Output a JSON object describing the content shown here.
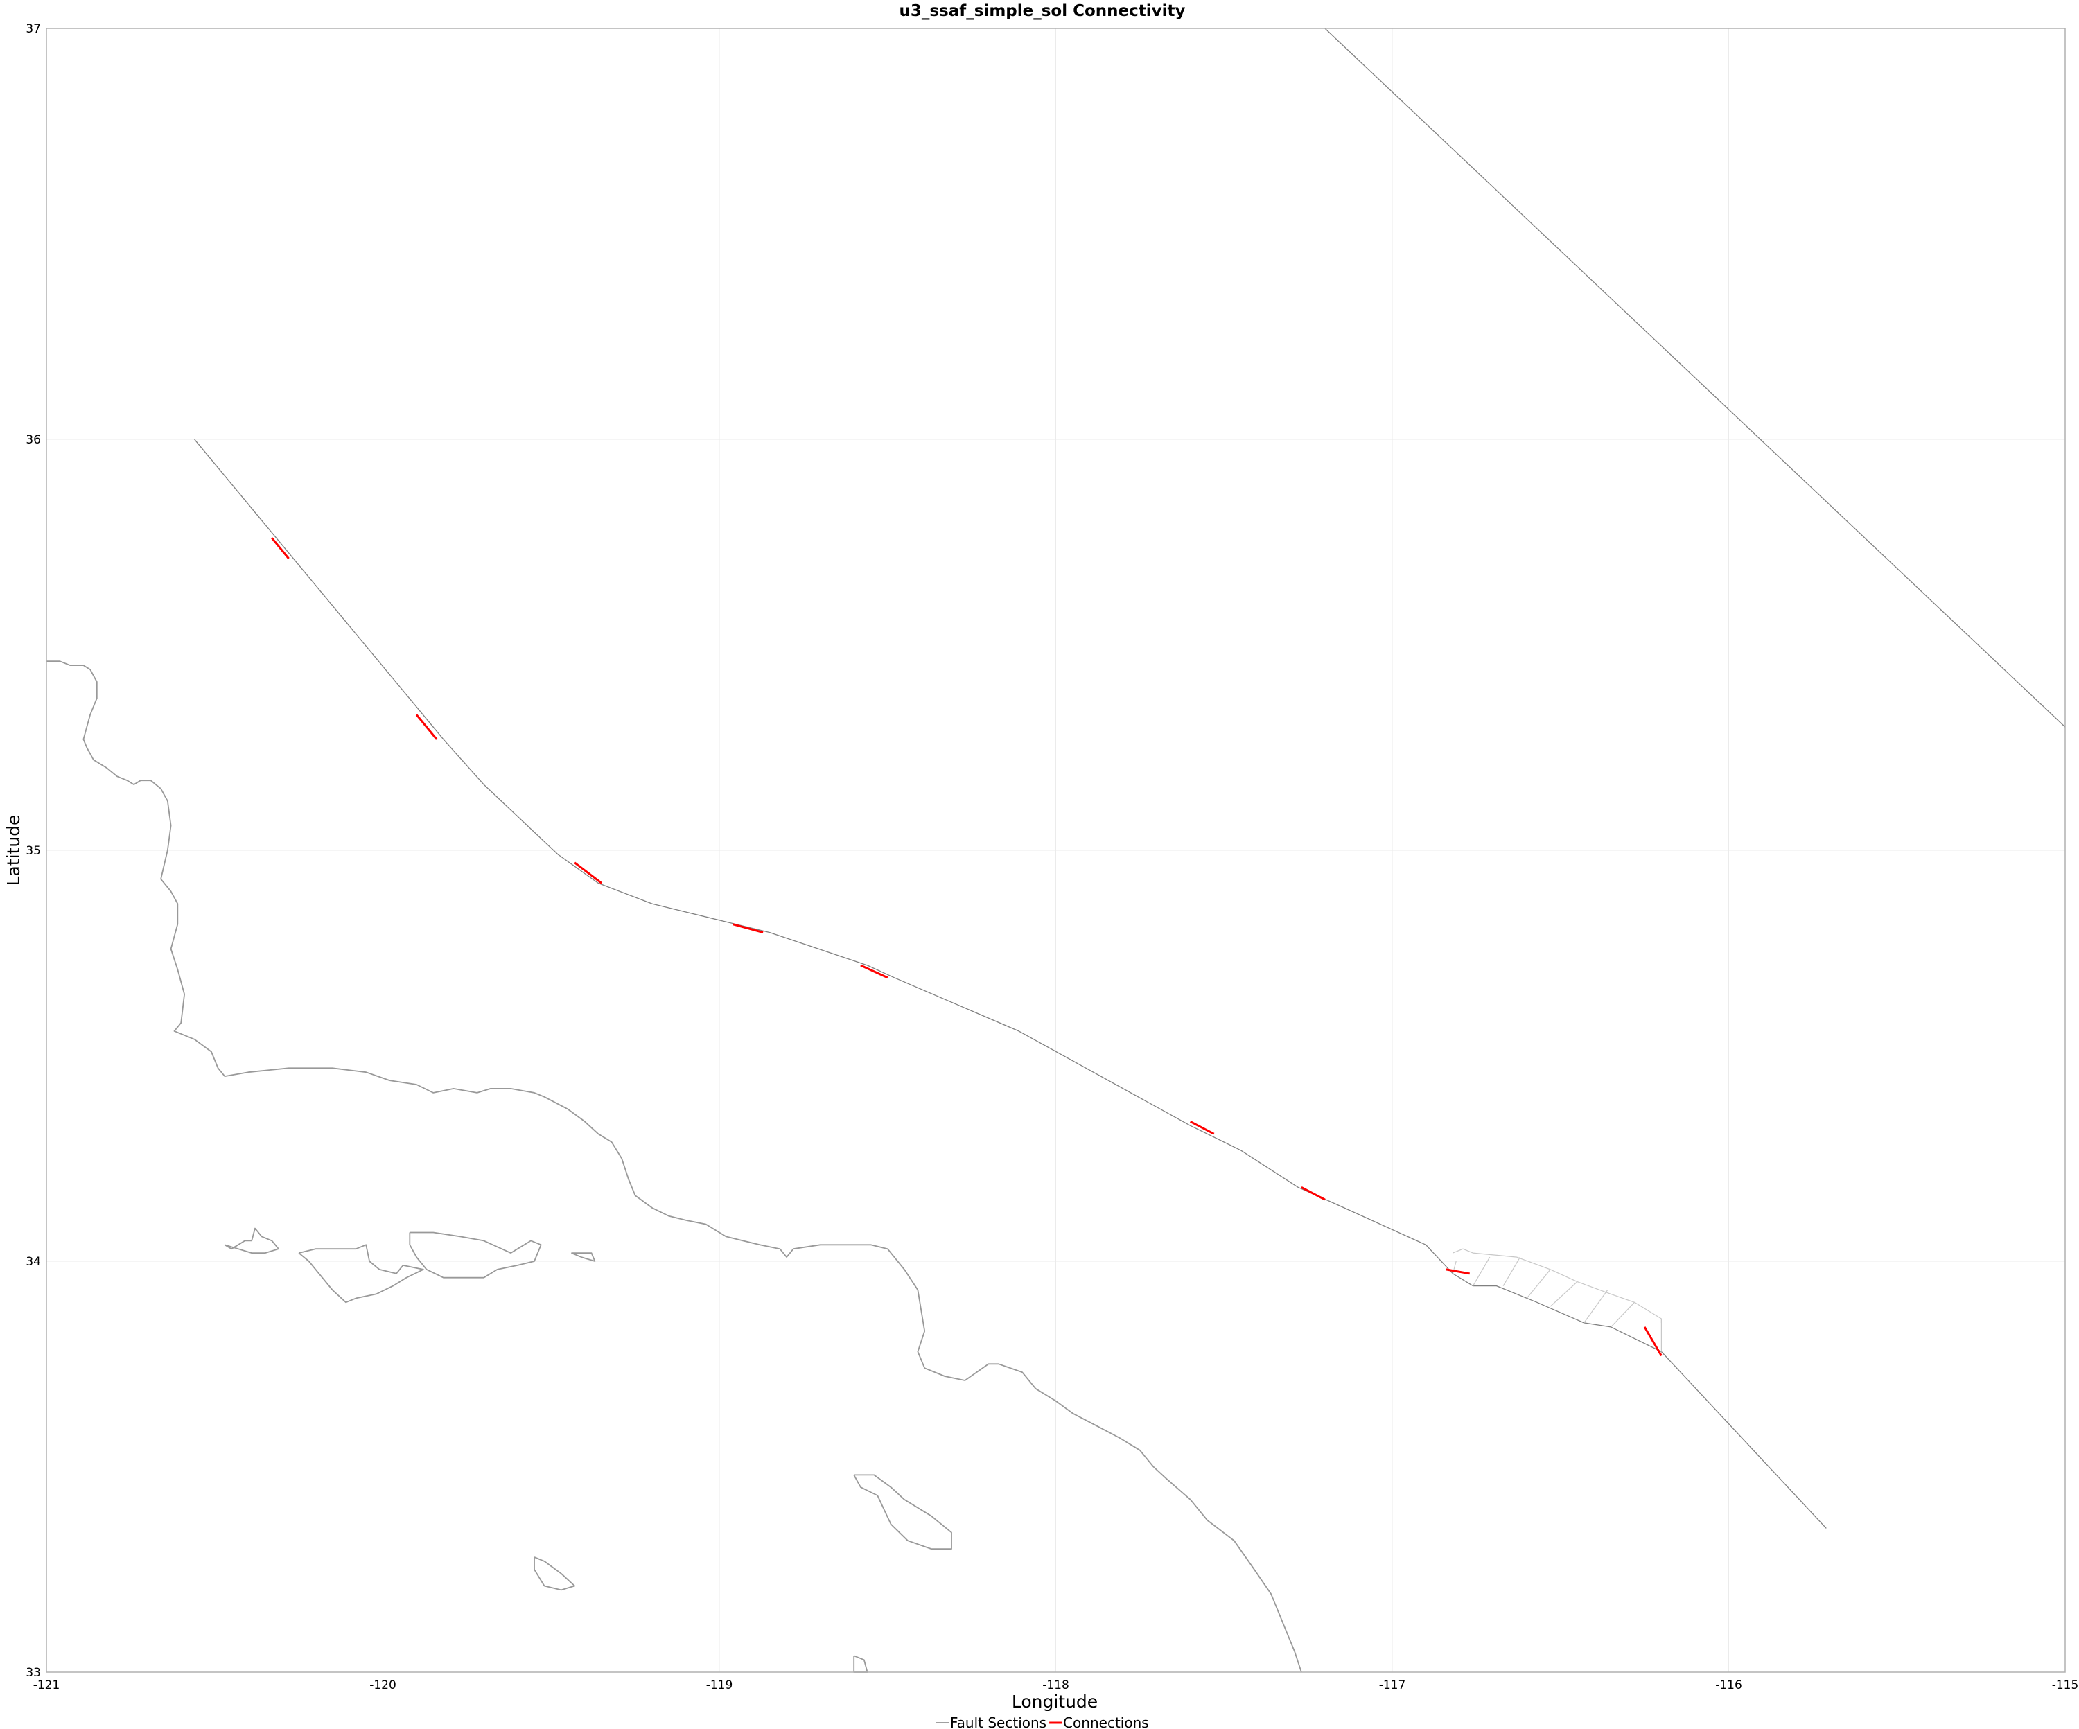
{
  "chart_data": {
    "type": "line",
    "title": "u3_ssaf_simple_sol Connectivity",
    "xlabel": "Longitude",
    "ylabel": "Latitude",
    "xlim": [
      -121,
      -115
    ],
    "ylim": [
      33,
      37
    ],
    "x_ticks": [
      -121,
      -120,
      -119,
      -118,
      -117,
      -116,
      -115
    ],
    "y_ticks": [
      33,
      34,
      35,
      36,
      37
    ],
    "grid": true,
    "legend_position": "bottom",
    "colors": {
      "fault": "#808080",
      "connection": "#ff0000",
      "coast": "#999999",
      "grid": "#ebebeb"
    },
    "series": [
      {
        "name": "Fault Sections",
        "color": "#808080",
        "lines": [
          [
            [
              -120.56,
              36.0
            ],
            [
              -119.82,
              35.27
            ],
            [
              -119.7,
              35.16
            ],
            [
              -119.48,
              34.99
            ],
            [
              -119.36,
              34.92
            ],
            [
              -119.2,
              34.87
            ],
            [
              -118.95,
              34.82
            ],
            [
              -118.85,
              34.8
            ],
            [
              -118.56,
              34.72
            ],
            [
              -118.48,
              34.69
            ],
            [
              -118.11,
              34.56
            ],
            [
              -117.6,
              34.33
            ],
            [
              -117.45,
              34.27
            ],
            [
              -117.28,
              34.18
            ],
            [
              -117.17,
              34.14
            ],
            [
              -116.9,
              34.04
            ],
            [
              -116.82,
              33.97
            ],
            [
              -116.76,
              33.94
            ],
            [
              -116.69,
              33.94
            ],
            [
              -116.57,
              33.9
            ],
            [
              -116.43,
              33.85
            ],
            [
              -116.35,
              33.84
            ],
            [
              -116.2,
              33.78
            ],
            [
              -115.71,
              33.35
            ]
          ],
          [
            [
              -117.2,
              37.0
            ],
            [
              -115.0,
              35.3
            ]
          ]
        ]
      },
      {
        "name": "",
        "color": "#c8c8c8",
        "lines": [
          [
            [
              -116.82,
              34.02
            ],
            [
              -116.79,
              34.03
            ],
            [
              -116.76,
              34.02
            ],
            [
              -116.63,
              34.01
            ],
            [
              -116.53,
              33.98
            ],
            [
              -116.45,
              33.95
            ],
            [
              -116.35,
              33.92
            ],
            [
              -116.28,
              33.9
            ],
            [
              -116.2,
              33.86
            ],
            [
              -116.2,
              33.85
            ]
          ],
          [
            [
              -116.81,
              34.0
            ],
            [
              -116.82,
              33.97
            ]
          ],
          [
            [
              -116.71,
              34.01
            ],
            [
              -116.76,
              33.94
            ]
          ],
          [
            [
              -116.62,
              34.01
            ],
            [
              -116.67,
              33.94
            ]
          ],
          [
            [
              -116.53,
              33.98
            ],
            [
              -116.6,
              33.91
            ]
          ],
          [
            [
              -116.45,
              33.95
            ],
            [
              -116.53,
              33.89
            ]
          ],
          [
            [
              -116.36,
              33.93
            ],
            [
              -116.43,
              33.85
            ]
          ],
          [
            [
              -116.28,
              33.9
            ],
            [
              -116.35,
              33.84
            ]
          ],
          [
            [
              -116.2,
              33.86
            ],
            [
              -116.2,
              33.78
            ]
          ]
        ]
      },
      {
        "name": "Connections",
        "color": "#ff0000",
        "lines": [
          [
            [
              -120.33,
              35.76
            ],
            [
              -120.28,
              35.71
            ]
          ],
          [
            [
              -119.9,
              35.33
            ],
            [
              -119.84,
              35.27
            ]
          ],
          [
            [
              -119.43,
              34.97
            ],
            [
              -119.35,
              34.92
            ]
          ],
          [
            [
              -118.96,
              34.82
            ],
            [
              -118.87,
              34.8
            ]
          ],
          [
            [
              -118.58,
              34.72
            ],
            [
              -118.5,
              34.69
            ]
          ],
          [
            [
              -117.6,
              34.34
            ],
            [
              -117.53,
              34.31
            ]
          ],
          [
            [
              -117.27,
              34.18
            ],
            [
              -117.2,
              34.15
            ]
          ],
          [
            [
              -116.84,
              33.98
            ],
            [
              -116.77,
              33.97
            ]
          ],
          [
            [
              -116.25,
              33.84
            ],
            [
              -116.2,
              33.77
            ]
          ]
        ]
      },
      {
        "name": "",
        "color": "#999999",
        "lines": [
          [
            [
              -121.0,
              35.46
            ],
            [
              -120.96,
              35.46
            ],
            [
              -120.93,
              35.45
            ],
            [
              -120.89,
              35.45
            ],
            [
              -120.87,
              35.44
            ],
            [
              -120.85,
              35.41
            ],
            [
              -120.85,
              35.37
            ],
            [
              -120.87,
              35.33
            ],
            [
              -120.89,
              35.27
            ],
            [
              -120.88,
              35.25
            ],
            [
              -120.86,
              35.22
            ],
            [
              -120.82,
              35.2
            ],
            [
              -120.79,
              35.18
            ],
            [
              -120.76,
              35.17
            ],
            [
              -120.74,
              35.16
            ],
            [
              -120.72,
              35.17
            ],
            [
              -120.69,
              35.17
            ],
            [
              -120.66,
              35.15
            ],
            [
              -120.64,
              35.12
            ],
            [
              -120.63,
              35.06
            ],
            [
              -120.64,
              35.0
            ],
            [
              -120.66,
              34.93
            ],
            [
              -120.63,
              34.9
            ],
            [
              -120.61,
              34.87
            ],
            [
              -120.61,
              34.82
            ],
            [
              -120.63,
              34.76
            ],
            [
              -120.61,
              34.71
            ],
            [
              -120.59,
              34.65
            ],
            [
              -120.6,
              34.58
            ],
            [
              -120.62,
              34.56
            ],
            [
              -120.56,
              34.54
            ],
            [
              -120.51,
              34.51
            ],
            [
              -120.49,
              34.47
            ],
            [
              -120.47,
              34.45
            ],
            [
              -120.4,
              34.46
            ],
            [
              -120.28,
              34.47
            ],
            [
              -120.15,
              34.47
            ],
            [
              -120.05,
              34.46
            ],
            [
              -119.98,
              34.44
            ],
            [
              -119.9,
              34.43
            ],
            [
              -119.85,
              34.41
            ],
            [
              -119.79,
              34.42
            ],
            [
              -119.72,
              34.41
            ],
            [
              -119.68,
              34.42
            ],
            [
              -119.62,
              34.42
            ],
            [
              -119.55,
              34.41
            ],
            [
              -119.52,
              34.4
            ],
            [
              -119.45,
              34.37
            ],
            [
              -119.4,
              34.34
            ],
            [
              -119.36,
              34.31
            ],
            [
              -119.32,
              34.29
            ],
            [
              -119.29,
              34.25
            ],
            [
              -119.27,
              34.2
            ],
            [
              -119.25,
              34.16
            ],
            [
              -119.2,
              34.13
            ],
            [
              -119.15,
              34.11
            ],
            [
              -119.1,
              34.1
            ],
            [
              -119.04,
              34.09
            ],
            [
              -118.98,
              34.06
            ],
            [
              -118.93,
              34.05
            ],
            [
              -118.88,
              34.04
            ],
            [
              -118.82,
              34.03
            ],
            [
              -118.8,
              34.01
            ],
            [
              -118.78,
              34.03
            ],
            [
              -118.7,
              34.04
            ],
            [
              -118.62,
              34.04
            ],
            [
              -118.55,
              34.04
            ],
            [
              -118.5,
              34.03
            ],
            [
              -118.45,
              33.98
            ],
            [
              -118.41,
              33.93
            ],
            [
              -118.4,
              33.88
            ],
            [
              -118.39,
              33.83
            ],
            [
              -118.41,
              33.78
            ],
            [
              -118.39,
              33.74
            ],
            [
              -118.33,
              33.72
            ],
            [
              -118.27,
              33.71
            ],
            [
              -118.2,
              33.75
            ],
            [
              -118.17,
              33.75
            ],
            [
              -118.1,
              33.73
            ],
            [
              -118.06,
              33.69
            ],
            [
              -118.0,
              33.66
            ],
            [
              -117.95,
              33.63
            ],
            [
              -117.88,
              33.6
            ],
            [
              -117.81,
              33.57
            ],
            [
              -117.75,
              33.54
            ],
            [
              -117.71,
              33.5
            ],
            [
              -117.67,
              33.47
            ],
            [
              -117.6,
              33.42
            ],
            [
              -117.55,
              33.37
            ],
            [
              -117.47,
              33.32
            ],
            [
              -117.41,
              33.25
            ],
            [
              -117.36,
              33.19
            ],
            [
              -117.32,
              33.11
            ],
            [
              -117.29,
              33.05
            ],
            [
              -117.27,
              33.0
            ]
          ],
          [
            [
              -120.47,
              34.04
            ],
            [
              -120.45,
              34.03
            ],
            [
              -120.43,
              34.04
            ],
            [
              -120.41,
              34.05
            ],
            [
              -120.39,
              34.05
            ],
            [
              -120.38,
              34.08
            ],
            [
              -120.36,
              34.06
            ],
            [
              -120.33,
              34.05
            ],
            [
              -120.31,
              34.03
            ],
            [
              -120.35,
              34.02
            ],
            [
              -120.39,
              34.02
            ],
            [
              -120.43,
              34.03
            ],
            [
              -120.47,
              34.04
            ]
          ],
          [
            [
              -120.25,
              34.02
            ],
            [
              -120.2,
              34.03
            ],
            [
              -120.14,
              34.03
            ],
            [
              -120.08,
              34.03
            ],
            [
              -120.05,
              34.04
            ],
            [
              -120.04,
              34.0
            ],
            [
              -120.01,
              33.98
            ],
            [
              -119.96,
              33.97
            ],
            [
              -119.94,
              33.99
            ],
            [
              -119.88,
              33.98
            ],
            [
              -119.93,
              33.96
            ],
            [
              -119.97,
              33.94
            ],
            [
              -120.02,
              33.92
            ],
            [
              -120.08,
              33.91
            ],
            [
              -120.11,
              33.9
            ],
            [
              -120.15,
              33.93
            ],
            [
              -120.19,
              33.97
            ],
            [
              -120.22,
              34.0
            ],
            [
              -120.25,
              34.02
            ]
          ],
          [
            [
              -119.92,
              34.07
            ],
            [
              -119.85,
              34.07
            ],
            [
              -119.77,
              34.06
            ],
            [
              -119.7,
              34.05
            ],
            [
              -119.62,
              34.02
            ],
            [
              -119.56,
              34.05
            ],
            [
              -119.53,
              34.04
            ],
            [
              -119.55,
              34.0
            ],
            [
              -119.6,
              33.99
            ],
            [
              -119.66,
              33.98
            ],
            [
              -119.7,
              33.96
            ],
            [
              -119.75,
              33.96
            ],
            [
              -119.82,
              33.96
            ],
            [
              -119.87,
              33.98
            ],
            [
              -119.9,
              34.01
            ],
            [
              -119.92,
              34.04
            ],
            [
              -119.92,
              34.07
            ]
          ],
          [
            [
              -119.44,
              34.02
            ],
            [
              -119.41,
              34.02
            ],
            [
              -119.38,
              34.02
            ],
            [
              -119.37,
              34.0
            ],
            [
              -119.41,
              34.01
            ],
            [
              -119.44,
              34.02
            ]
          ],
          [
            [
              -118.6,
              33.48
            ],
            [
              -118.54,
              33.48
            ],
            [
              -118.49,
              33.45
            ],
            [
              -118.45,
              33.42
            ],
            [
              -118.37,
              33.38
            ],
            [
              -118.31,
              33.34
            ],
            [
              -118.31,
              33.3
            ],
            [
              -118.37,
              33.3
            ],
            [
              -118.44,
              33.32
            ],
            [
              -118.49,
              33.36
            ],
            [
              -118.53,
              33.43
            ],
            [
              -118.58,
              33.45
            ],
            [
              -118.6,
              33.48
            ]
          ],
          [
            [
              -119.55,
              33.28
            ],
            [
              -119.52,
              33.27
            ],
            [
              -119.47,
              33.24
            ],
            [
              -119.43,
              33.21
            ],
            [
              -119.47,
              33.2
            ],
            [
              -119.52,
              33.21
            ],
            [
              -119.55,
              33.25
            ],
            [
              -119.55,
              33.28
            ]
          ],
          [
            [
              -118.6,
              33.04
            ],
            [
              -118.57,
              33.03
            ],
            [
              -118.56,
              33.0
            ],
            [
              -118.6,
              33.0
            ],
            [
              -118.6,
              33.04
            ]
          ]
        ]
      }
    ],
    "legend": [
      {
        "label": "Fault Sections",
        "color": "#808080"
      },
      {
        "label": "Connections",
        "color": "#ff0000"
      }
    ]
  }
}
